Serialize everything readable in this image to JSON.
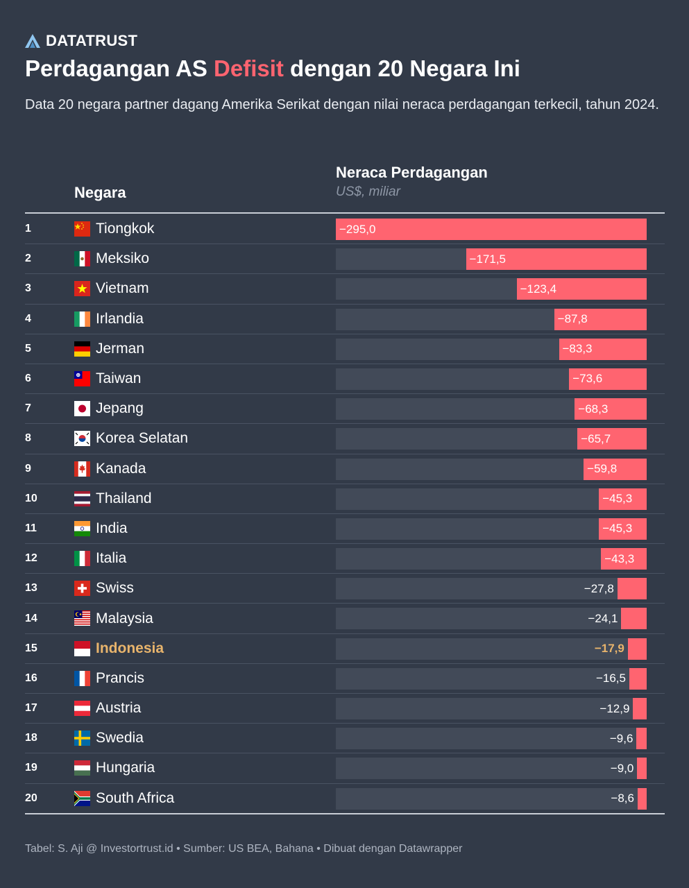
{
  "brand": {
    "name": "DATATRUST",
    "icon": "datatrust-logo-icon",
    "color": "#8fc6f0"
  },
  "header": {
    "title_pre": "Perdagangan AS ",
    "title_highlight": "Defisit",
    "title_post": " dengan 20 Negara Ini",
    "subtitle": "Data 20 negara partner dagang Amerika Serikat dengan nilai neraca perdagangan terkecil, tahun 2024."
  },
  "columns": {
    "country": "Negara",
    "value": "Neraca Perdagangan",
    "unit": "US$, miliar"
  },
  "colors": {
    "background": "#323a48",
    "bar": "#ff6470",
    "track": "#424a58",
    "highlight": "#e8b46c"
  },
  "chart_data": {
    "type": "bar",
    "title": "Perdagangan AS Defisit dengan 20 Negara Ini",
    "ylabel": "Neraca Perdagangan (US$, miliar)",
    "xlabel": "Negara",
    "ylim": [
      -295,
      0
    ],
    "rows": [
      {
        "rank": "1",
        "country": "Tiongkok",
        "flag": "china-flag-icon",
        "value": -295.0,
        "label": "−295,0"
      },
      {
        "rank": "2",
        "country": "Meksiko",
        "flag": "mexico-flag-icon",
        "value": -171.5,
        "label": "−171,5"
      },
      {
        "rank": "3",
        "country": "Vietnam",
        "flag": "vietnam-flag-icon",
        "value": -123.4,
        "label": "−123,4"
      },
      {
        "rank": "4",
        "country": "Irlandia",
        "flag": "ireland-flag-icon",
        "value": -87.8,
        "label": "−87,8"
      },
      {
        "rank": "5",
        "country": "Jerman",
        "flag": "germany-flag-icon",
        "value": -83.3,
        "label": "−83,3"
      },
      {
        "rank": "6",
        "country": "Taiwan",
        "flag": "taiwan-flag-icon",
        "value": -73.6,
        "label": "−73,6"
      },
      {
        "rank": "7",
        "country": "Jepang",
        "flag": "japan-flag-icon",
        "value": -68.3,
        "label": "−68,3"
      },
      {
        "rank": "8",
        "country": "Korea Selatan",
        "flag": "south-korea-flag-icon",
        "value": -65.7,
        "label": "−65,7"
      },
      {
        "rank": "9",
        "country": "Kanada",
        "flag": "canada-flag-icon",
        "value": -59.8,
        "label": "−59,8"
      },
      {
        "rank": "10",
        "country": "Thailand",
        "flag": "thailand-flag-icon",
        "value": -45.3,
        "label": "−45,3"
      },
      {
        "rank": "11",
        "country": "India",
        "flag": "india-flag-icon",
        "value": -45.3,
        "label": "−45,3"
      },
      {
        "rank": "12",
        "country": "Italia",
        "flag": "italy-flag-icon",
        "value": -43.3,
        "label": "−43,3"
      },
      {
        "rank": "13",
        "country": "Swiss",
        "flag": "switzerland-flag-icon",
        "value": -27.8,
        "label": "−27,8"
      },
      {
        "rank": "14",
        "country": "Malaysia",
        "flag": "malaysia-flag-icon",
        "value": -24.1,
        "label": "−24,1"
      },
      {
        "rank": "15",
        "country": "Indonesia",
        "flag": "indonesia-flag-icon",
        "value": -17.9,
        "label": "−17,9",
        "highlight": true
      },
      {
        "rank": "16",
        "country": "Prancis",
        "flag": "france-flag-icon",
        "value": -16.5,
        "label": "−16,5"
      },
      {
        "rank": "17",
        "country": "Austria",
        "flag": "austria-flag-icon",
        "value": -12.9,
        "label": "−12,9"
      },
      {
        "rank": "18",
        "country": "Swedia",
        "flag": "sweden-flag-icon",
        "value": -9.6,
        "label": "−9,6"
      },
      {
        "rank": "19",
        "country": "Hungaria",
        "flag": "hungary-flag-icon",
        "value": -9.0,
        "label": "−9,0"
      },
      {
        "rank": "20",
        "country": "South Africa",
        "flag": "south-africa-flag-icon",
        "value": -8.6,
        "label": "−8,6"
      }
    ]
  },
  "footer": {
    "text": "Tabel: S. Aji @ Investortrust.id • Sumber: US BEA, Bahana • Dibuat dengan Datawrapper"
  }
}
